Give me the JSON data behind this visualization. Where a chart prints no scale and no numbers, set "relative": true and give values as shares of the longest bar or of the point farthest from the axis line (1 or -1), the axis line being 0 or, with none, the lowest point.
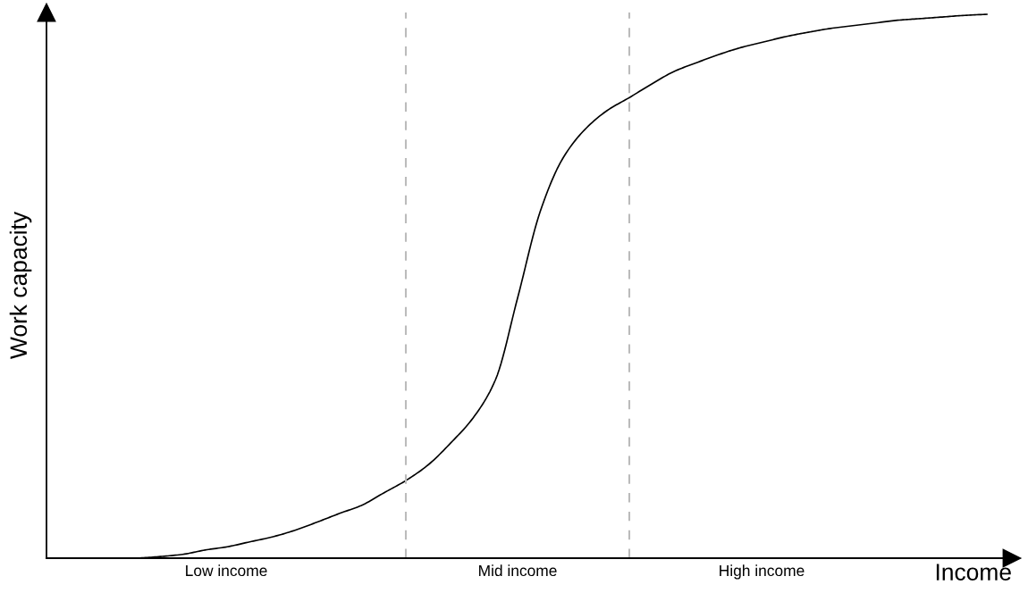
{
  "chart_data": {
    "type": "line",
    "relative": true,
    "xlabel": "Income",
    "ylabel": "Work capacity",
    "categories": [
      null,
      null,
      null,
      null,
      null,
      null,
      null,
      null,
      null,
      null,
      null,
      null,
      null,
      null,
      null,
      null,
      null,
      null,
      null,
      null,
      null,
      null,
      null,
      null,
      null,
      null,
      null,
      null,
      null,
      null,
      null,
      null,
      null,
      null,
      null,
      null,
      null,
      null,
      null,
      null,
      null,
      null,
      null,
      null
    ],
    "series": [
      {
        "color": "#000000",
        "values": [
          null,
          null,
          null,
          null,
          0,
          0.003,
          0.007,
          0.015,
          0.021,
          0.03,
          0.039,
          0.051,
          0.066,
          0.082,
          0.097,
          0.12,
          0.143,
          0.172,
          0.212,
          0.258,
          0.328,
          0.48,
          0.637,
          0.734,
          0.788,
          0.823,
          0.847,
          0.872,
          0.895,
          0.911,
          0.926,
          0.939,
          0.949,
          0.959,
          0.967,
          0.974,
          0.979,
          0.984,
          0.989,
          0.992,
          0.995,
          0.998,
          1,
          null
        ]
      }
    ],
    "annotations": [
      "Low income",
      "Mid income",
      "High income"
    ],
    "legend": false
  }
}
